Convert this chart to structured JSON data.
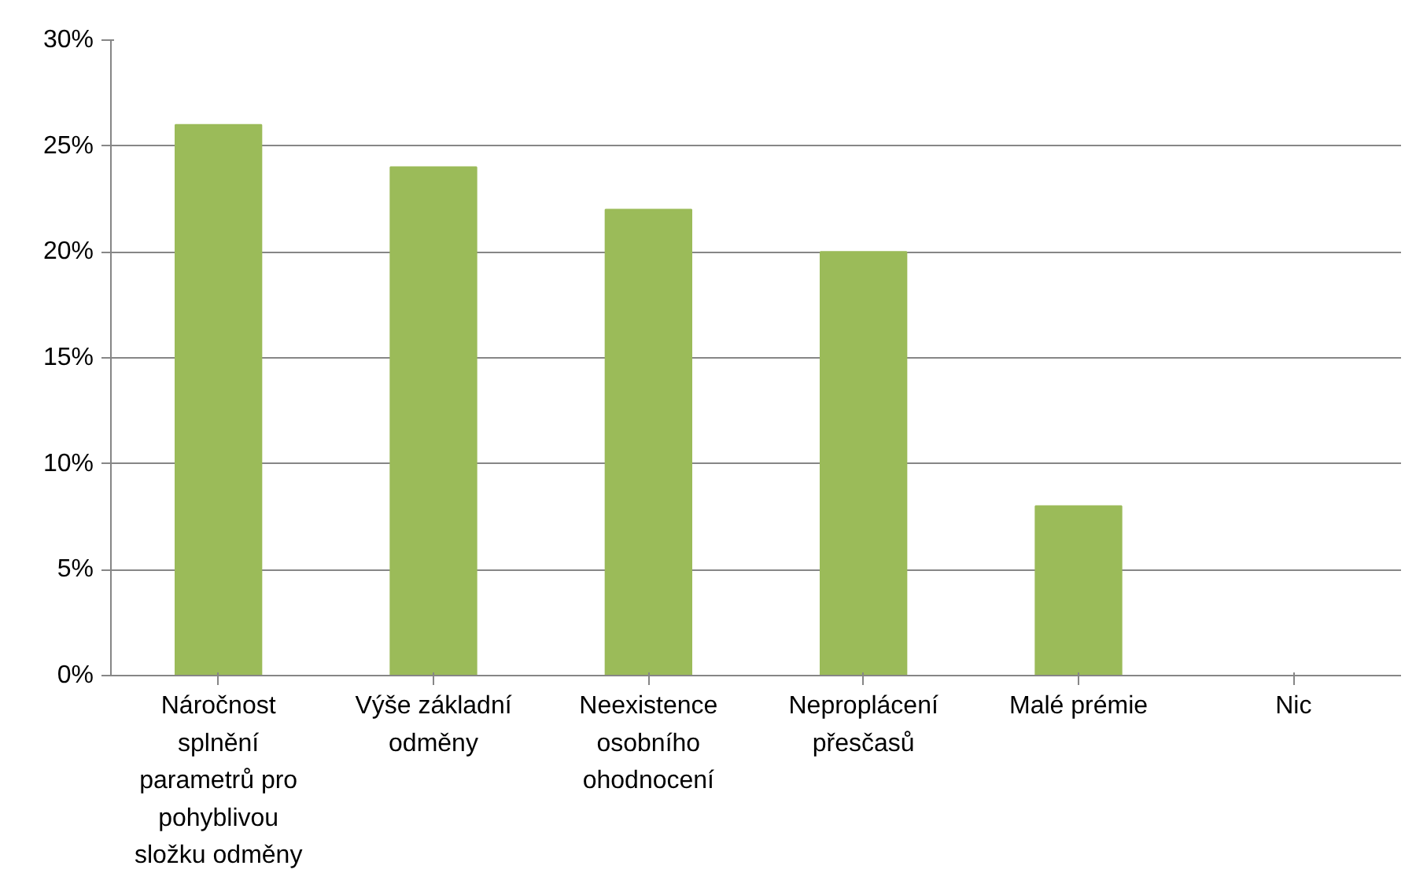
{
  "chart_data": {
    "type": "bar",
    "categories": [
      "Náročnost splnění parametrů pro pohyblivou složku odměny",
      "Výše základní odměny",
      "Neexistence osobního ohodnocení",
      "Neproplácení přesčasů",
      "Malé prémie",
      "Nic"
    ],
    "values": [
      26,
      24,
      22,
      20,
      8,
      0
    ],
    "color": "#9bbb59",
    "ylim": [
      0,
      30
    ],
    "yticks": [
      {
        "value": 0,
        "label": "0%"
      },
      {
        "value": 5,
        "label": "5%"
      },
      {
        "value": 10,
        "label": "10%"
      },
      {
        "value": 15,
        "label": "15%"
      },
      {
        "value": 20,
        "label": "20%"
      },
      {
        "value": 25,
        "label": "25%"
      },
      {
        "value": 30,
        "label": "30%"
      }
    ],
    "grid": "y"
  }
}
